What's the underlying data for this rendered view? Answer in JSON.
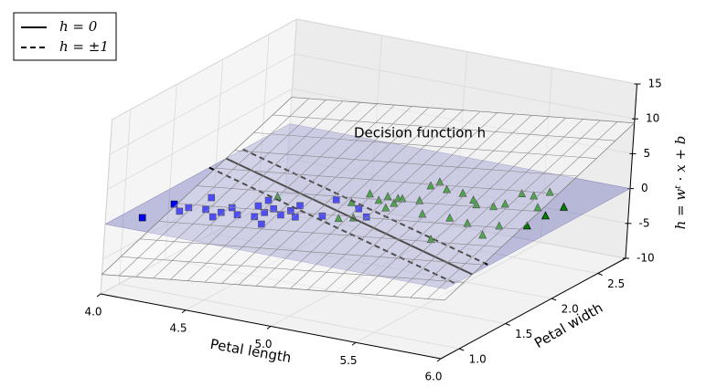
{
  "chart_data": {
    "type": "scatter3d",
    "annotation": "Decision function h",
    "xlabel": "Petal length",
    "ylabel": "Petal width",
    "zlabel": "h = wᵗ · x + b",
    "xlim": [
      4,
      6
    ],
    "ylim": [
      0.8,
      2.8
    ],
    "zlim": [
      -10,
      15
    ],
    "xticks": [
      {
        "value": 4,
        "label": "4.0"
      },
      4.5,
      {
        "value": 5,
        "label": "5.0"
      },
      5.5,
      {
        "value": 6,
        "label": "6.0"
      }
    ],
    "yticks": [
      {
        "value": 1,
        "label": "1.0"
      },
      1.5,
      {
        "value": 2,
        "label": "2.0"
      },
      2.5
    ],
    "zticks": [
      -10,
      -5,
      0,
      5,
      10,
      15
    ],
    "decision_function": {
      "w": [
        2.8,
        5.5
      ],
      "b": -22.8
    },
    "lines": [
      {
        "name": "h = 0",
        "levels": [
          0
        ],
        "style": "solid",
        "color": "#000000"
      },
      {
        "name": "h = ±1",
        "levels": [
          1,
          -1
        ],
        "style": "dashed",
        "color": "#000000"
      }
    ],
    "legend": "upper left",
    "series": [
      {
        "marker": "square",
        "color": "#0000ff",
        "x": [
          4.11,
          4.14,
          4.22,
          4.23,
          4.25,
          4.32,
          4.41,
          4.41,
          4.42,
          4.5,
          4.59,
          4.52,
          4.68,
          4.6,
          4.52,
          4.61,
          4.69,
          4.7,
          4.7,
          4.77,
          4.88,
          4.81,
          4.98,
          5.08
        ],
        "y": [
          1.0,
          1.29,
          1.2,
          1.28,
          1.49,
          1.3,
          1.21,
          1.3,
          1.4,
          1.31,
          1.33,
          1.5,
          1.24,
          1.42,
          1.61,
          1.5,
          1.43,
          1.52,
          1.62,
          1.44,
          1.53,
          1.81,
          1.74,
          1.64
        ]
      },
      {
        "marker": "triangle",
        "color": "#008000",
        "x": [
          4.53,
          4.97,
          4.9,
          5.03,
          4.91,
          5.0,
          5.09,
          5.01,
          5.09,
          5.07,
          5.09,
          5.18,
          5.3,
          5.11,
          5.54,
          5.12,
          5.21,
          5.45,
          5.31,
          5.57,
          5.41,
          5.46,
          5.73,
          5.55,
          5.73,
          5.58,
          5.57,
          5.85,
          5.64,
          5.75,
          5.85,
          5.68,
          5.86
        ],
        "y": [
          1.69,
          1.54,
          1.81,
          1.59,
          1.99,
          1.92,
          1.83,
          2.0,
          1.92,
          2.0,
          2.01,
          2.03,
          1.84,
          2.28,
          1.49,
          2.36,
          2.27,
          1.86,
          2.26,
          1.83,
          2.19,
          2.13,
          1.7,
          2.15,
          1.88,
          2.22,
          2.42,
          1.96,
          2.42,
          2.26,
          2.16,
          2.52,
          2.34
        ]
      }
    ]
  }
}
